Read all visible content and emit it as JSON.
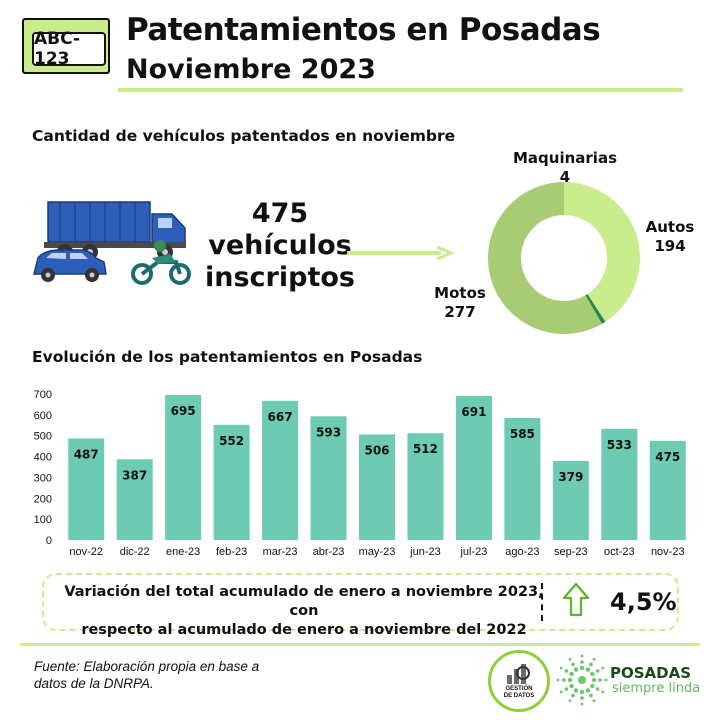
{
  "header": {
    "plate_text": "ABC-123",
    "title": "Patentamientos en Posadas",
    "subtitle": "Noviembre 2023"
  },
  "summary": {
    "section_title": "Cantidad de vehículos patentados en noviembre",
    "count": "475",
    "count_line2": "vehículos",
    "count_line3": "inscriptos"
  },
  "donut": {
    "segments": [
      {
        "name": "Autos",
        "value": 194,
        "color": "#c9ec8c"
      },
      {
        "name": "Maquinarias",
        "value": 4,
        "color": "#1f8a4c"
      },
      {
        "name": "Motos",
        "value": 277,
        "color": "#a7cc74"
      }
    ],
    "labels": {
      "autos_name": "Autos",
      "autos_value": "194",
      "maq_name": "Maquinarias",
      "maq_value": "4",
      "motos_name": "Motos",
      "motos_value": "277"
    }
  },
  "chart_data": {
    "type": "bar",
    "title": "Evolución de los patentamientos en Posadas",
    "categories": [
      "nov-22",
      "dic-22",
      "ene-23",
      "feb-23",
      "mar-23",
      "abr-23",
      "may-23",
      "jun-23",
      "jul-23",
      "ago-23",
      "sep-23",
      "oct-23",
      "nov-23"
    ],
    "values": [
      487,
      387,
      695,
      552,
      667,
      593,
      506,
      512,
      691,
      585,
      379,
      533,
      475
    ],
    "ylim": [
      0,
      700
    ],
    "yticks": [
      0,
      100,
      200,
      300,
      400,
      500,
      600,
      700
    ],
    "bar_color": "#6ccbb0",
    "grid": false,
    "legend": "none"
  },
  "variation": {
    "text_line1": "Variación del total acumulado de enero a noviembre 2023, con",
    "text_line2": "respecto al acumulado de enero a noviembre del 2022",
    "value": "4,5%"
  },
  "footer": {
    "source_line1": "Fuente: Elaboración propia en base a",
    "source_line2": "datos de la DNRPA.",
    "logo1_text_line1": "GESTIÓN",
    "logo1_text_line2": "DE DATOS",
    "logo2_title": "POSADAS",
    "logo2_sub": "siempre linda"
  },
  "icons": [
    "truck-icon",
    "car-icon",
    "motorcycle-icon",
    "arrow-right-icon",
    "arrow-up-icon",
    "gestion-datos-logo",
    "posadas-logo"
  ]
}
